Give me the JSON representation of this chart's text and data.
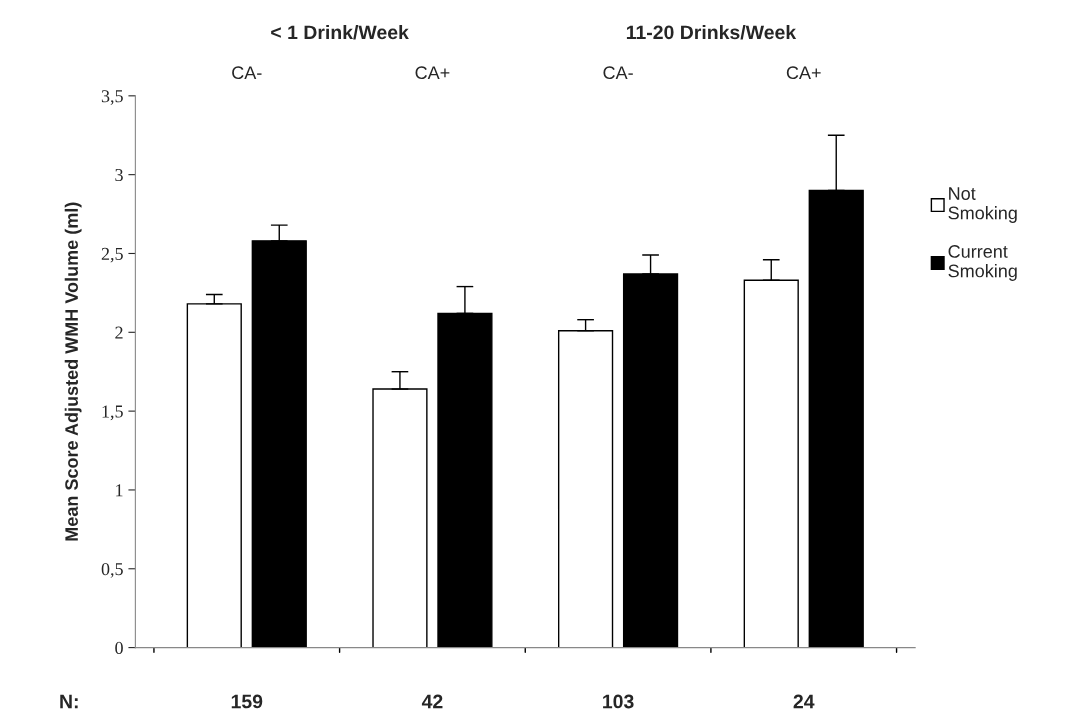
{
  "chart_data": {
    "type": "bar",
    "ylabel": "Mean Score Adjusted WMH Volume (ml)",
    "categories": [
      "CA-",
      "CA+",
      "CA-",
      "CA+"
    ],
    "series": [
      {
        "name": "Not\nSmoking",
        "color": "#ffffff",
        "values": [
          2.18,
          1.64,
          2.01,
          2.33
        ],
        "errors": [
          [
            2.18,
            2.24
          ],
          [
            1.64,
            1.75
          ],
          [
            2.01,
            2.08
          ],
          [
            2.33,
            2.46
          ]
        ]
      },
      {
        "name": "Current\nSmoking",
        "color": "#000000",
        "values": [
          2.58,
          2.12,
          2.37,
          2.9
        ],
        "errors": [
          [
            2.58,
            2.68
          ],
          [
            2.12,
            2.29
          ],
          [
            2.37,
            2.49
          ],
          [
            2.9,
            3.25
          ]
        ]
      }
    ],
    "ylim": [
      0,
      3.5
    ],
    "yticks": [
      0,
      {
        "value": 0.5,
        "label": "0,5"
      },
      1,
      {
        "value": 1.5,
        "label": "1,5"
      },
      2,
      {
        "value": 2.5,
        "label": "2,5"
      },
      3,
      {
        "value": 3.5,
        "label": "3,5"
      }
    ],
    "grid": false,
    "legend": "right",
    "annotations": [
      "< 1 Drink/Week",
      "11-20 Drinks/Week",
      "N:",
      "159",
      "42",
      "103",
      "24"
    ]
  }
}
